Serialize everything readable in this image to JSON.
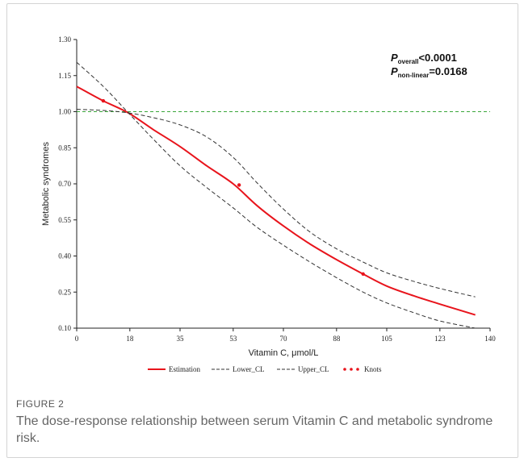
{
  "chart_data": {
    "type": "line",
    "xlabel": "Vitamin C, μmol/L",
    "ylabel": "Metabolic syndromes",
    "xlim": [
      0,
      140
    ],
    "ylim": [
      0.1,
      1.3
    ],
    "x_ticks": [
      "0",
      "18",
      "35",
      "53",
      "70",
      "88",
      "105",
      "123",
      "140"
    ],
    "y_ticks": [
      "0.10",
      "0.25",
      "0.40",
      "0.55",
      "0.70",
      "0.85",
      "1.00",
      "1.15",
      "1.30"
    ],
    "reference_line": {
      "y": 1.0,
      "color": "#3aa63a",
      "style": "dashed"
    },
    "series": [
      {
        "name": "Estimation",
        "style": "solid",
        "color": "#e8141c",
        "x": [
          0,
          9,
          17.5,
          26,
          35,
          44,
          53,
          61,
          70,
          79,
          88,
          97,
          105,
          114,
          123,
          135
        ],
        "y": [
          1.105,
          1.045,
          0.995,
          0.925,
          0.855,
          0.775,
          0.7,
          0.61,
          0.525,
          0.45,
          0.385,
          0.325,
          0.275,
          0.235,
          0.2,
          0.155
        ]
      },
      {
        "name": "Lower_CL",
        "style": "dashed",
        "color": "#333333",
        "x": [
          0,
          9,
          17.5,
          26,
          35,
          44,
          53,
          61,
          70,
          79,
          88,
          97,
          105,
          114,
          123,
          135
        ],
        "y": [
          1.205,
          1.105,
          0.995,
          0.885,
          0.775,
          0.685,
          0.6,
          0.52,
          0.445,
          0.375,
          0.31,
          0.25,
          0.205,
          0.165,
          0.13,
          0.1
        ]
      },
      {
        "name": "Upper_CL",
        "style": "dashed",
        "color": "#333333",
        "x": [
          0,
          9,
          17.5,
          26,
          35,
          44,
          53,
          61,
          70,
          79,
          88,
          97,
          105,
          114,
          123,
          135
        ],
        "y": [
          1.01,
          1.005,
          0.995,
          0.975,
          0.945,
          0.895,
          0.81,
          0.705,
          0.595,
          0.5,
          0.43,
          0.375,
          0.33,
          0.295,
          0.265,
          0.23
        ]
      }
    ],
    "knots": {
      "name": "Knots",
      "color": "#e8141c",
      "x": [
        9,
        55,
        97
      ],
      "y": [
        1.045,
        0.695,
        0.325
      ]
    },
    "annotations": [
      {
        "p": "P",
        "sub": "overall",
        "text": "<0.0001"
      },
      {
        "p": "P",
        "sub": "non-linear",
        "text": "=0.0168"
      }
    ],
    "legend": {
      "placement": "bottom",
      "items": [
        "Estimation",
        "Lower_CL",
        "Upper_CL",
        "Knots"
      ]
    }
  },
  "caption": {
    "label": "FIGURE 2",
    "text": "The dose-response relationship between serum Vitamin C and metabolic syndrome risk."
  }
}
